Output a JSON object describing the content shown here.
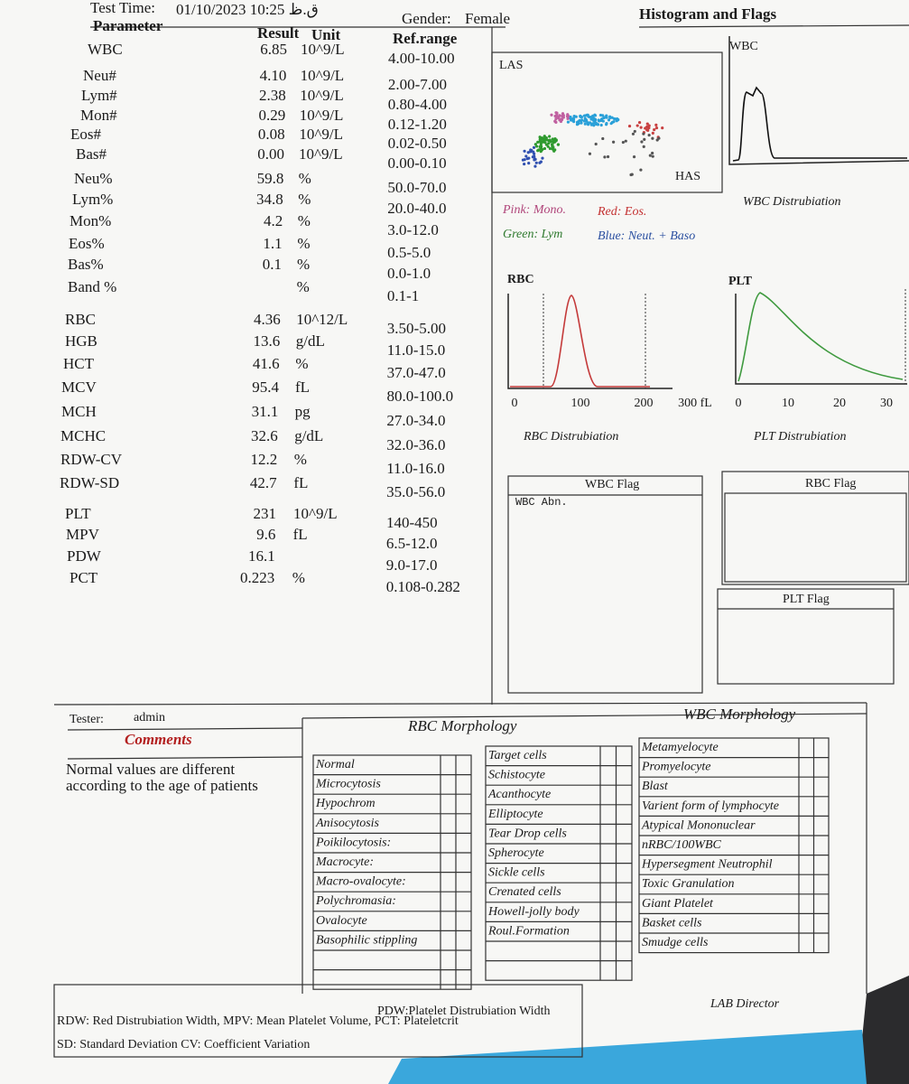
{
  "header": {
    "test_time_label": "Test Time:",
    "test_time": "01/10/2023 10:25 ق.ظ",
    "gender_label": "Gender:",
    "gender": "Female"
  },
  "table": {
    "columns": [
      "Parameter",
      "Result",
      "Unit",
      "Ref.range"
    ],
    "rows": [
      {
        "parameter": "WBC",
        "result": "6.85",
        "unit": "10^9/L",
        "range": "4.00-10.00"
      },
      {
        "parameter": "Neu#",
        "result": "4.10",
        "unit": "10^9/L",
        "range": "2.00-7.00"
      },
      {
        "parameter": "Lym#",
        "result": "2.38",
        "unit": "10^9/L",
        "range": "0.80-4.00"
      },
      {
        "parameter": "Mon#",
        "result": "0.29",
        "unit": "10^9/L",
        "range": "0.12-1.20"
      },
      {
        "parameter": "Eos#",
        "result": "0.08",
        "unit": "10^9/L",
        "range": "0.02-0.50"
      },
      {
        "parameter": "Bas#",
        "result": "0.00",
        "unit": "10^9/L",
        "range": "0.00-0.10"
      },
      {
        "parameter": "Neu%",
        "result": "59.8",
        "unit": "%",
        "range": "50.0-70.0"
      },
      {
        "parameter": "Lym%",
        "result": "34.8",
        "unit": "%",
        "range": "20.0-40.0"
      },
      {
        "parameter": "Mon%",
        "result": "4.2",
        "unit": "%",
        "range": "3.0-12.0"
      },
      {
        "parameter": "Eos%",
        "result": "1.1",
        "unit": "%",
        "range": "0.5-5.0"
      },
      {
        "parameter": "Bas%",
        "result": "0.1",
        "unit": "%",
        "range": "0.0-1.0"
      },
      {
        "parameter": "Band %",
        "unit": "%",
        "range": "0.1-1"
      },
      {
        "parameter": "RBC",
        "result": "4.36",
        "unit": "10^12/L",
        "range": "3.50-5.00"
      },
      {
        "parameter": "HGB",
        "result": "13.6",
        "unit": "g/dL",
        "range": "11.0-15.0"
      },
      {
        "parameter": "HCT",
        "result": "41.6",
        "unit": "%",
        "range": "37.0-47.0"
      },
      {
        "parameter": "MCV",
        "result": "95.4",
        "unit": "fL",
        "range": "80.0-100.0"
      },
      {
        "parameter": "MCH",
        "result": "31.1",
        "unit": "pg",
        "range": "27.0-34.0"
      },
      {
        "parameter": "MCHC",
        "result": "32.6",
        "unit": "g/dL",
        "range": "32.0-36.0"
      },
      {
        "parameter": "RDW-CV",
        "result": "12.2",
        "unit": "%",
        "range": "11.0-16.0"
      },
      {
        "parameter": "RDW-SD",
        "result": "42.7",
        "unit": "fL",
        "range": "35.0-56.0"
      },
      {
        "parameter": "PLT",
        "result": "231",
        "unit": "10^9/L",
        "range": "140-450"
      },
      {
        "parameter": "MPV",
        "result": "9.6",
        "unit": "fL",
        "range": "6.5-12.0"
      },
      {
        "parameter": "PDW",
        "result": "16.1",
        "range": "9.0-17.0"
      },
      {
        "parameter": "PCT",
        "result": "0.223",
        "unit": "%",
        "range": "0.108-0.282"
      }
    ]
  },
  "histograms": {
    "title": "Histogram and Flags",
    "scatter": {
      "top_label": "LAS",
      "bottom_label": "HAS",
      "legend": [
        "Pink: Mono.",
        "Red: Eos.",
        "Green: Lym",
        "Blue: Neut. + Baso"
      ]
    },
    "wbc": {
      "label": "WBC",
      "caption": "WBC Distrubiation"
    },
    "rbc": {
      "label": "RBC",
      "ticks": [
        "0",
        "100",
        "200",
        "300 fL"
      ],
      "caption": "RBC Distrubiation"
    },
    "plt": {
      "label": "PLT",
      "ticks": [
        "0",
        "10",
        "20",
        "30"
      ],
      "caption": "PLT Distrubiation"
    }
  },
  "flags": {
    "wbc": {
      "title": "WBC Flag",
      "items": [
        "WBC Abn."
      ]
    },
    "rbc": {
      "title": "RBC Flag"
    },
    "plt": {
      "title": "PLT Flag"
    }
  },
  "tester": {
    "label": "Tester:",
    "name": "admin"
  },
  "comments": {
    "title": "Comments",
    "lines": [
      "Normal values are different",
      "according to the age of patients"
    ]
  },
  "rbc_morphology": {
    "title": "RBC Morphology",
    "column1": [
      "Normal",
      "Microcytosis",
      "Hypochrom",
      "Anisocytosis",
      "Poikilocytosis:",
      "Macrocyte:",
      "Macro-ovalocyte:",
      "Polychromasia:",
      "Ovalocyte",
      "Basophilic stippling"
    ],
    "column2": [
      "Target cells",
      "Schistocyte",
      "Acanthocyte",
      "Elliptocyte",
      "Tear Drop cells",
      "Spherocyte",
      "Sickle cells",
      "Crenated cells",
      "Howell-jolly body",
      "Roul.Formation"
    ]
  },
  "wbc_morphology": {
    "title": "WBC Morphology",
    "items": [
      "Metamyelocyte",
      "Promyelocyte",
      "Blast",
      "Varient form of lymphocyte",
      "Atypical Mononuclear",
      "nRBC/100WBC",
      "Hypersegment Neutrophil",
      "Toxic Granulation",
      "Giant Platelet",
      "Basket cells",
      "Smudge cells"
    ]
  },
  "footer": {
    "lines": [
      "RDW: Red Distrubiation Width,  MPV: Mean Platelet Volume,  PCT: Plateletcrit",
      "PDW:Platelet Distrubiation Width",
      "SD: Standard Deviation  CV: Coefficient Variation"
    ],
    "signature": "LAB Director"
  }
}
